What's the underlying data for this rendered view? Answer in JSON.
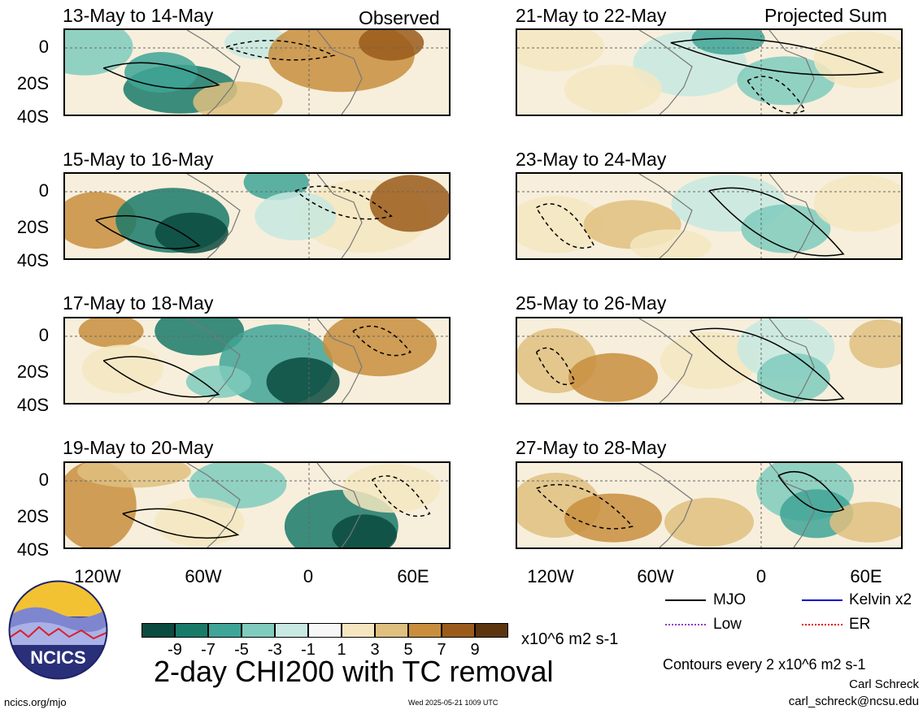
{
  "panels_left": [
    {
      "title": "13-May to 14-May",
      "tag": "Observed"
    },
    {
      "title": "15-May to 16-May",
      "tag": ""
    },
    {
      "title": "17-May to 18-May",
      "tag": ""
    },
    {
      "title": "19-May to 20-May",
      "tag": ""
    }
  ],
  "panels_right": [
    {
      "title": "21-May to 22-May",
      "tag": "Projected Sum"
    },
    {
      "title": "23-May to 24-May",
      "tag": ""
    },
    {
      "title": "25-May to 26-May",
      "tag": ""
    },
    {
      "title": "27-May to 28-May",
      "tag": ""
    }
  ],
  "y_ticks": [
    "0",
    "20S",
    "40S"
  ],
  "x_ticks": [
    "120W",
    "60W",
    "0",
    "60E"
  ],
  "colorbar": {
    "colors": [
      "#0b4a3e",
      "#1a7a6a",
      "#3fa596",
      "#7fcbbd",
      "#c7e9e1",
      "#f7f7f7",
      "#f5e6c0",
      "#dfc07f",
      "#c88e3d",
      "#9a5b1a",
      "#5c3510"
    ],
    "labels": [
      "-9",
      "-7",
      "-5",
      "-3",
      "-1",
      "1",
      "3",
      "5",
      "7",
      "9"
    ],
    "units": "x10^6 m2 s-1"
  },
  "main_title": "2-day CHI200 with TC removal",
  "legend": {
    "items": [
      {
        "label": "MJO",
        "color": "#000000"
      },
      {
        "label": "Kelvin x2",
        "color": "#0000cc"
      },
      {
        "label": "Low",
        "color": "#9933cc"
      },
      {
        "label": "ER",
        "color": "#dd0000"
      }
    ],
    "contour_note": "Contours every 2 x10^6 m2 s-1"
  },
  "credits": {
    "author": "Carl Schreck",
    "email": "carl_schreck@ncsu.edu",
    "url": "ncics.org/mjo",
    "timestamp": "Wed 2025-05-21 1009 UTC"
  },
  "logo": {
    "text": "NCICS"
  }
}
